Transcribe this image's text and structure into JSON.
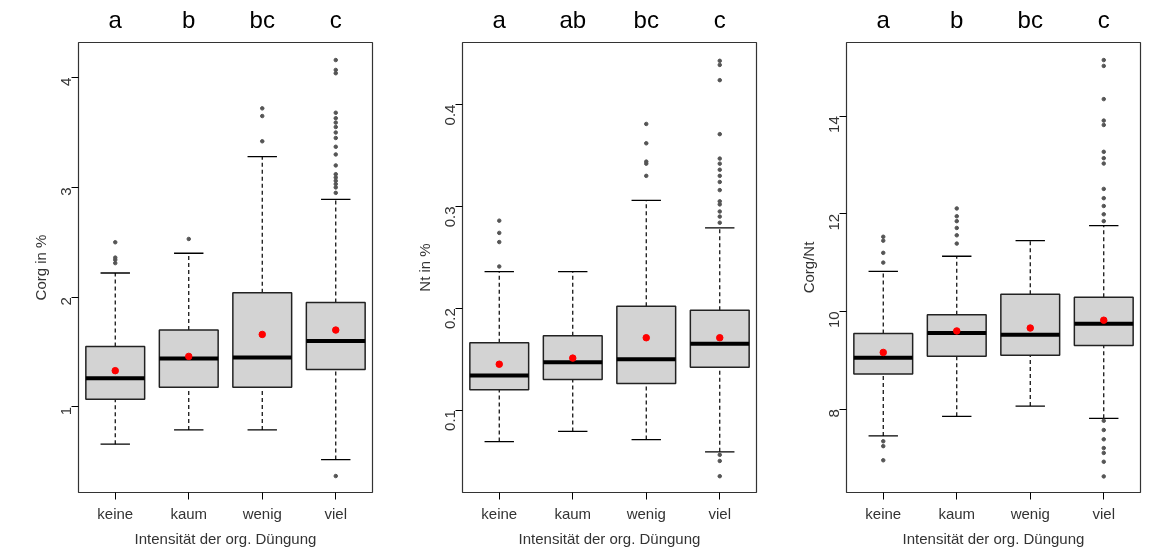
{
  "chart_data": [
    {
      "type": "box",
      "categories": [
        "keine",
        "kaum",
        "wenig",
        "viel"
      ],
      "xlabel": "Intensität der org. Düngung",
      "ylabel": "Corg in %",
      "ylim": [
        0.22,
        4.32
      ],
      "yticks": [
        1,
        2,
        3,
        4
      ],
      "grid": false,
      "annotations": [
        "a",
        "b",
        "bc",
        "c"
      ],
      "boxes": [
        {
          "low": 0.66,
          "q1": 1.07,
          "median": 1.26,
          "q3": 1.55,
          "high": 2.22,
          "mean": 1.33,
          "outliers": [
            2.31,
            2.34,
            2.36,
            2.5
          ]
        },
        {
          "low": 0.79,
          "q1": 1.18,
          "median": 1.44,
          "q3": 1.7,
          "high": 2.4,
          "mean": 1.46,
          "outliers": [
            2.53
          ]
        },
        {
          "low": 0.79,
          "q1": 1.18,
          "median": 1.45,
          "q3": 2.04,
          "high": 3.28,
          "mean": 1.66,
          "outliers": [
            3.42,
            3.65,
            3.72
          ]
        },
        {
          "low": 0.52,
          "q1": 1.34,
          "median": 1.6,
          "q3": 1.95,
          "high": 2.89,
          "mean": 1.7,
          "outliers": [
            0.37,
            2.95,
            3.0,
            3.03,
            3.06,
            3.09,
            3.12,
            3.2,
            3.3,
            3.37,
            3.45,
            3.5,
            3.55,
            3.59,
            3.63,
            3.68,
            4.04,
            4.07,
            4.16
          ]
        }
      ]
    },
    {
      "type": "box",
      "categories": [
        "keine",
        "kaum",
        "wenig",
        "viel"
      ],
      "xlabel": "Intensität der org. Düngung",
      "ylabel": "Nt in %",
      "ylim": [
        0.019,
        0.461
      ],
      "yticks": [
        0.1,
        0.2,
        0.3,
        0.4
      ],
      "grid": false,
      "annotations": [
        "a",
        "ab",
        "bc",
        "c"
      ],
      "boxes": [
        {
          "low": 0.069,
          "q1": 0.12,
          "median": 0.134,
          "q3": 0.166,
          "high": 0.236,
          "mean": 0.145,
          "outliers": [
            0.241,
            0.265,
            0.274,
            0.286
          ]
        },
        {
          "low": 0.079,
          "q1": 0.13,
          "median": 0.147,
          "q3": 0.173,
          "high": 0.236,
          "mean": 0.151
        },
        {
          "low": 0.071,
          "q1": 0.126,
          "median": 0.15,
          "q3": 0.202,
          "high": 0.306,
          "mean": 0.171,
          "outliers": [
            0.33,
            0.342,
            0.344,
            0.362,
            0.381
          ]
        },
        {
          "low": 0.059,
          "q1": 0.142,
          "median": 0.165,
          "q3": 0.198,
          "high": 0.279,
          "mean": 0.171,
          "outliers": [
            0.035,
            0.05,
            0.056,
            0.284,
            0.29,
            0.295,
            0.302,
            0.305,
            0.316,
            0.324,
            0.33,
            0.336,
            0.342,
            0.347,
            0.371,
            0.424,
            0.439,
            0.443
          ]
        }
      ]
    },
    {
      "type": "box",
      "categories": [
        "keine",
        "kaum",
        "wenig",
        "viel"
      ],
      "xlabel": "Intensität der org. Düngung",
      "ylabel": "Corg/Nt",
      "ylim": [
        6.29,
        15.51
      ],
      "yticks": [
        8,
        10,
        12,
        14
      ],
      "grid": false,
      "annotations": [
        "a",
        "b",
        "bc",
        "c"
      ],
      "boxes": [
        {
          "low": 7.45,
          "q1": 8.72,
          "median": 9.05,
          "q3": 9.55,
          "high": 10.82,
          "mean": 9.16,
          "outliers": [
            6.95,
            7.24,
            7.34,
            11.0,
            11.2,
            11.45,
            11.53
          ]
        },
        {
          "low": 7.85,
          "q1": 9.08,
          "median": 9.56,
          "q3": 9.93,
          "high": 11.13,
          "mean": 9.6,
          "outliers": [
            11.39,
            11.56,
            11.71,
            11.85,
            11.95,
            12.11
          ]
        },
        {
          "low": 8.06,
          "q1": 9.1,
          "median": 9.52,
          "q3": 10.35,
          "high": 11.45,
          "mean": 9.66
        },
        {
          "low": 7.81,
          "q1": 9.3,
          "median": 9.75,
          "q3": 10.29,
          "high": 11.76,
          "mean": 9.82,
          "outliers": [
            6.62,
            6.92,
            7.1,
            7.2,
            7.38,
            7.57,
            7.76,
            11.85,
            11.99,
            12.16,
            12.32,
            12.51,
            13.03,
            13.14,
            13.27,
            13.82,
            13.91,
            14.35,
            15.03,
            15.15
          ]
        }
      ]
    }
  ]
}
